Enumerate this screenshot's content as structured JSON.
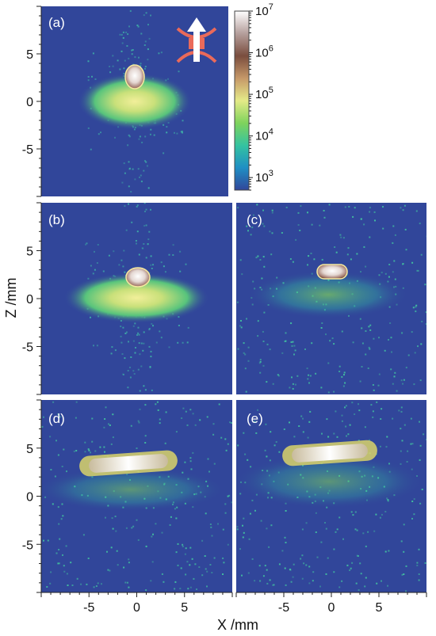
{
  "figure": {
    "xlabel": "X /mm",
    "ylabel": "Z /mm"
  },
  "colorbar": {
    "scale": "log",
    "range": [
      500,
      10000000
    ],
    "tick_labels": [
      "10^7",
      "10^6",
      "10^5",
      "10^4",
      "10^3"
    ],
    "tick_values": [
      10000000,
      1000000,
      100000,
      10000,
      1000
    ],
    "colors": [
      "#31469a",
      "#1f8fc4",
      "#34c3a0",
      "#7fd35c",
      "#e5ea88",
      "#c69868",
      "#7a4d3e",
      "#b59f9c",
      "#ffffff"
    ]
  },
  "chart_data": [
    {
      "type": "heatmap",
      "panel": "(a)",
      "xlim": [
        -10,
        10
      ],
      "ylim": [
        -10,
        10
      ],
      "xticks": [
        -5,
        0,
        5
      ],
      "yticks": [
        -5,
        0,
        5
      ],
      "background_color": "#31469a",
      "features": [
        {
          "kind": "bright core",
          "x": 0,
          "y": 2.3,
          "level": 5000000
        },
        {
          "kind": "diffuse cloud",
          "x": 0,
          "y": 0,
          "level": 30000
        }
      ],
      "inset_icon": "arrow-through-trap-icon"
    },
    {
      "type": "heatmap",
      "panel": "(b)",
      "xlim": [
        -10,
        10
      ],
      "ylim": [
        -10,
        10
      ],
      "xticks": [
        -5,
        0,
        5
      ],
      "yticks": [
        -5,
        0,
        5
      ],
      "features": [
        {
          "kind": "bright core",
          "x": 0,
          "y": 2.2,
          "level": 5000000
        },
        {
          "kind": "diffuse cloud",
          "x": 0,
          "y": 0,
          "level": 30000
        }
      ]
    },
    {
      "type": "heatmap",
      "panel": "(c)",
      "xlim": [
        -10,
        10
      ],
      "ylim": [
        -10,
        10
      ],
      "features": [
        {
          "kind": "bright core",
          "x": 1,
          "y": 2.8,
          "level": 5000000
        },
        {
          "kind": "speckled cloud",
          "x": 0,
          "y": 0.5,
          "level": 10000
        }
      ]
    },
    {
      "type": "heatmap",
      "panel": "(d)",
      "xlim": [
        -10,
        10
      ],
      "ylim": [
        -10,
        10
      ],
      "xticks": [
        -5,
        0,
        5
      ],
      "yticks": [
        -5,
        0,
        5
      ],
      "features": [
        {
          "kind": "elongated bright streak",
          "x": -0.5,
          "y": 3.5,
          "level": 3000000
        },
        {
          "kind": "speckled band",
          "x": 0,
          "y": 0,
          "level": 5000
        }
      ]
    },
    {
      "type": "heatmap",
      "panel": "(e)",
      "xlim": [
        -10,
        10
      ],
      "ylim": [
        -10,
        10
      ],
      "xticks": [
        -5,
        0,
        5
      ],
      "features": [
        {
          "kind": "elongated bright streak",
          "x": 0.5,
          "y": 4.2,
          "level": 3000000
        },
        {
          "kind": "speckled band",
          "x": 0,
          "y": 1,
          "level": 5000
        }
      ]
    }
  ]
}
